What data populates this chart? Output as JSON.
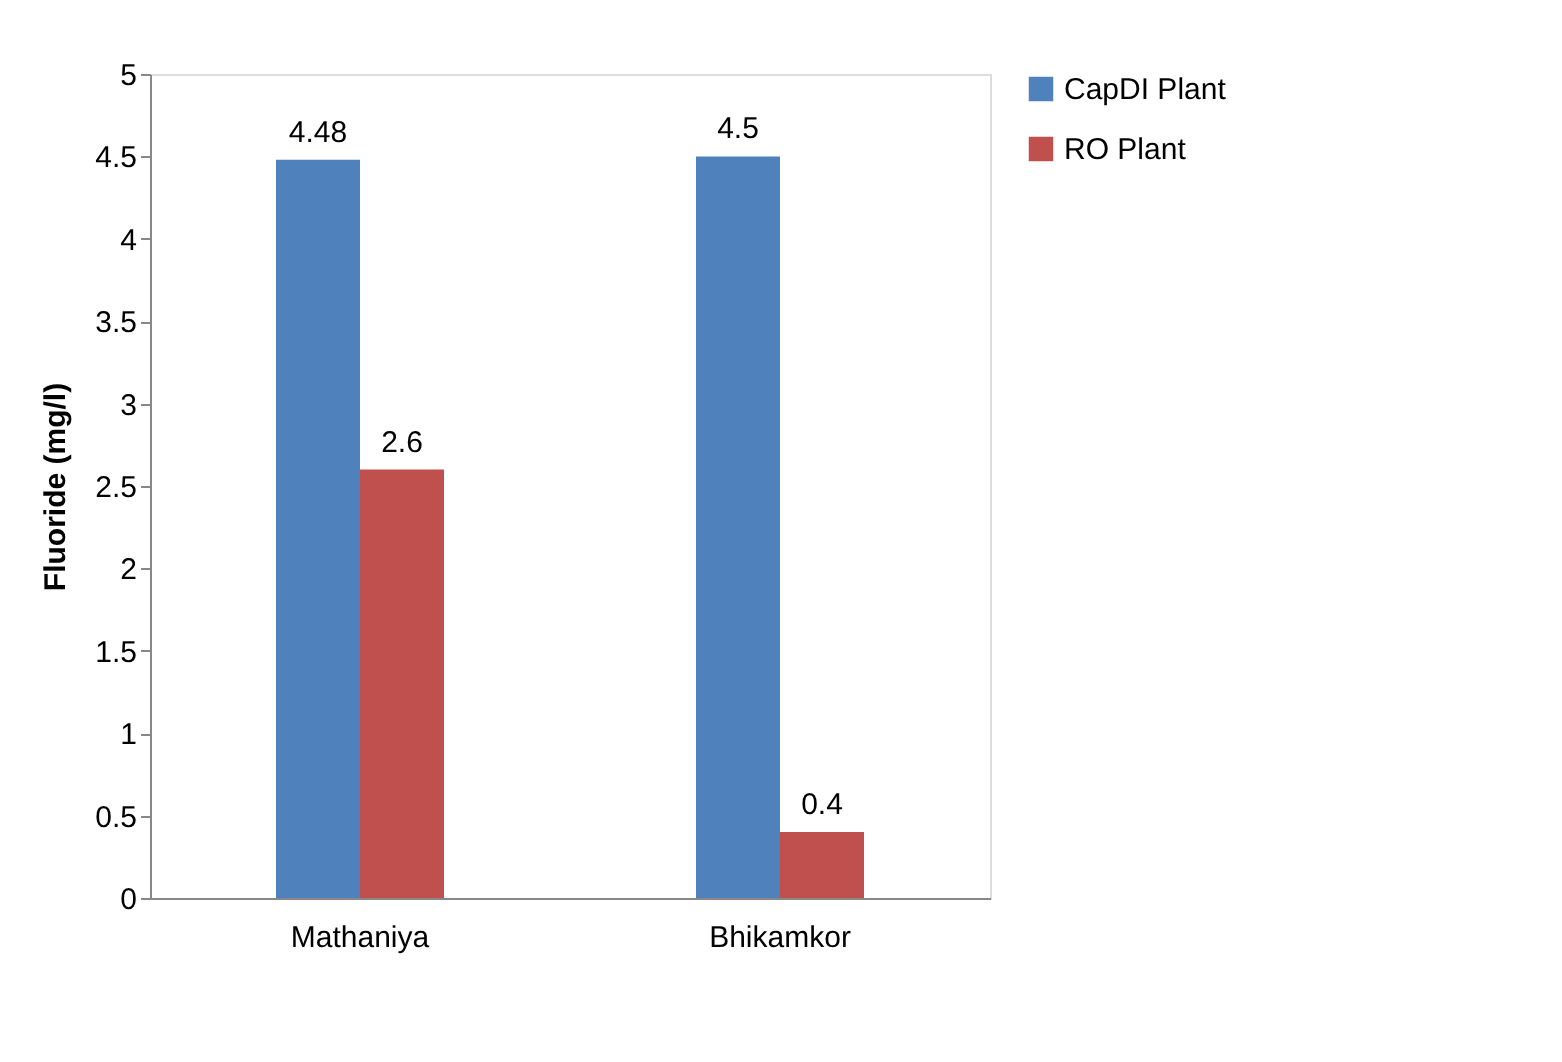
{
  "chart_data": {
    "type": "bar",
    "ylabel": "Fluoride (mg/l)",
    "categories": [
      "Mathaniya",
      "Bhikamkor"
    ],
    "series": [
      {
        "name": "CapDI Plant",
        "color": "#4f81bd",
        "values": [
          4.48,
          4.5
        ]
      },
      {
        "name": "RO Plant",
        "color": "#c0504d",
        "values": [
          2.6,
          0.4
        ]
      }
    ],
    "ylim": [
      0,
      5
    ],
    "yticks": [
      0,
      0.5,
      1,
      1.5,
      2,
      2.5,
      3,
      3.5,
      4,
      4.5,
      5
    ],
    "data_labels": true,
    "grid": false,
    "legend": "right"
  }
}
